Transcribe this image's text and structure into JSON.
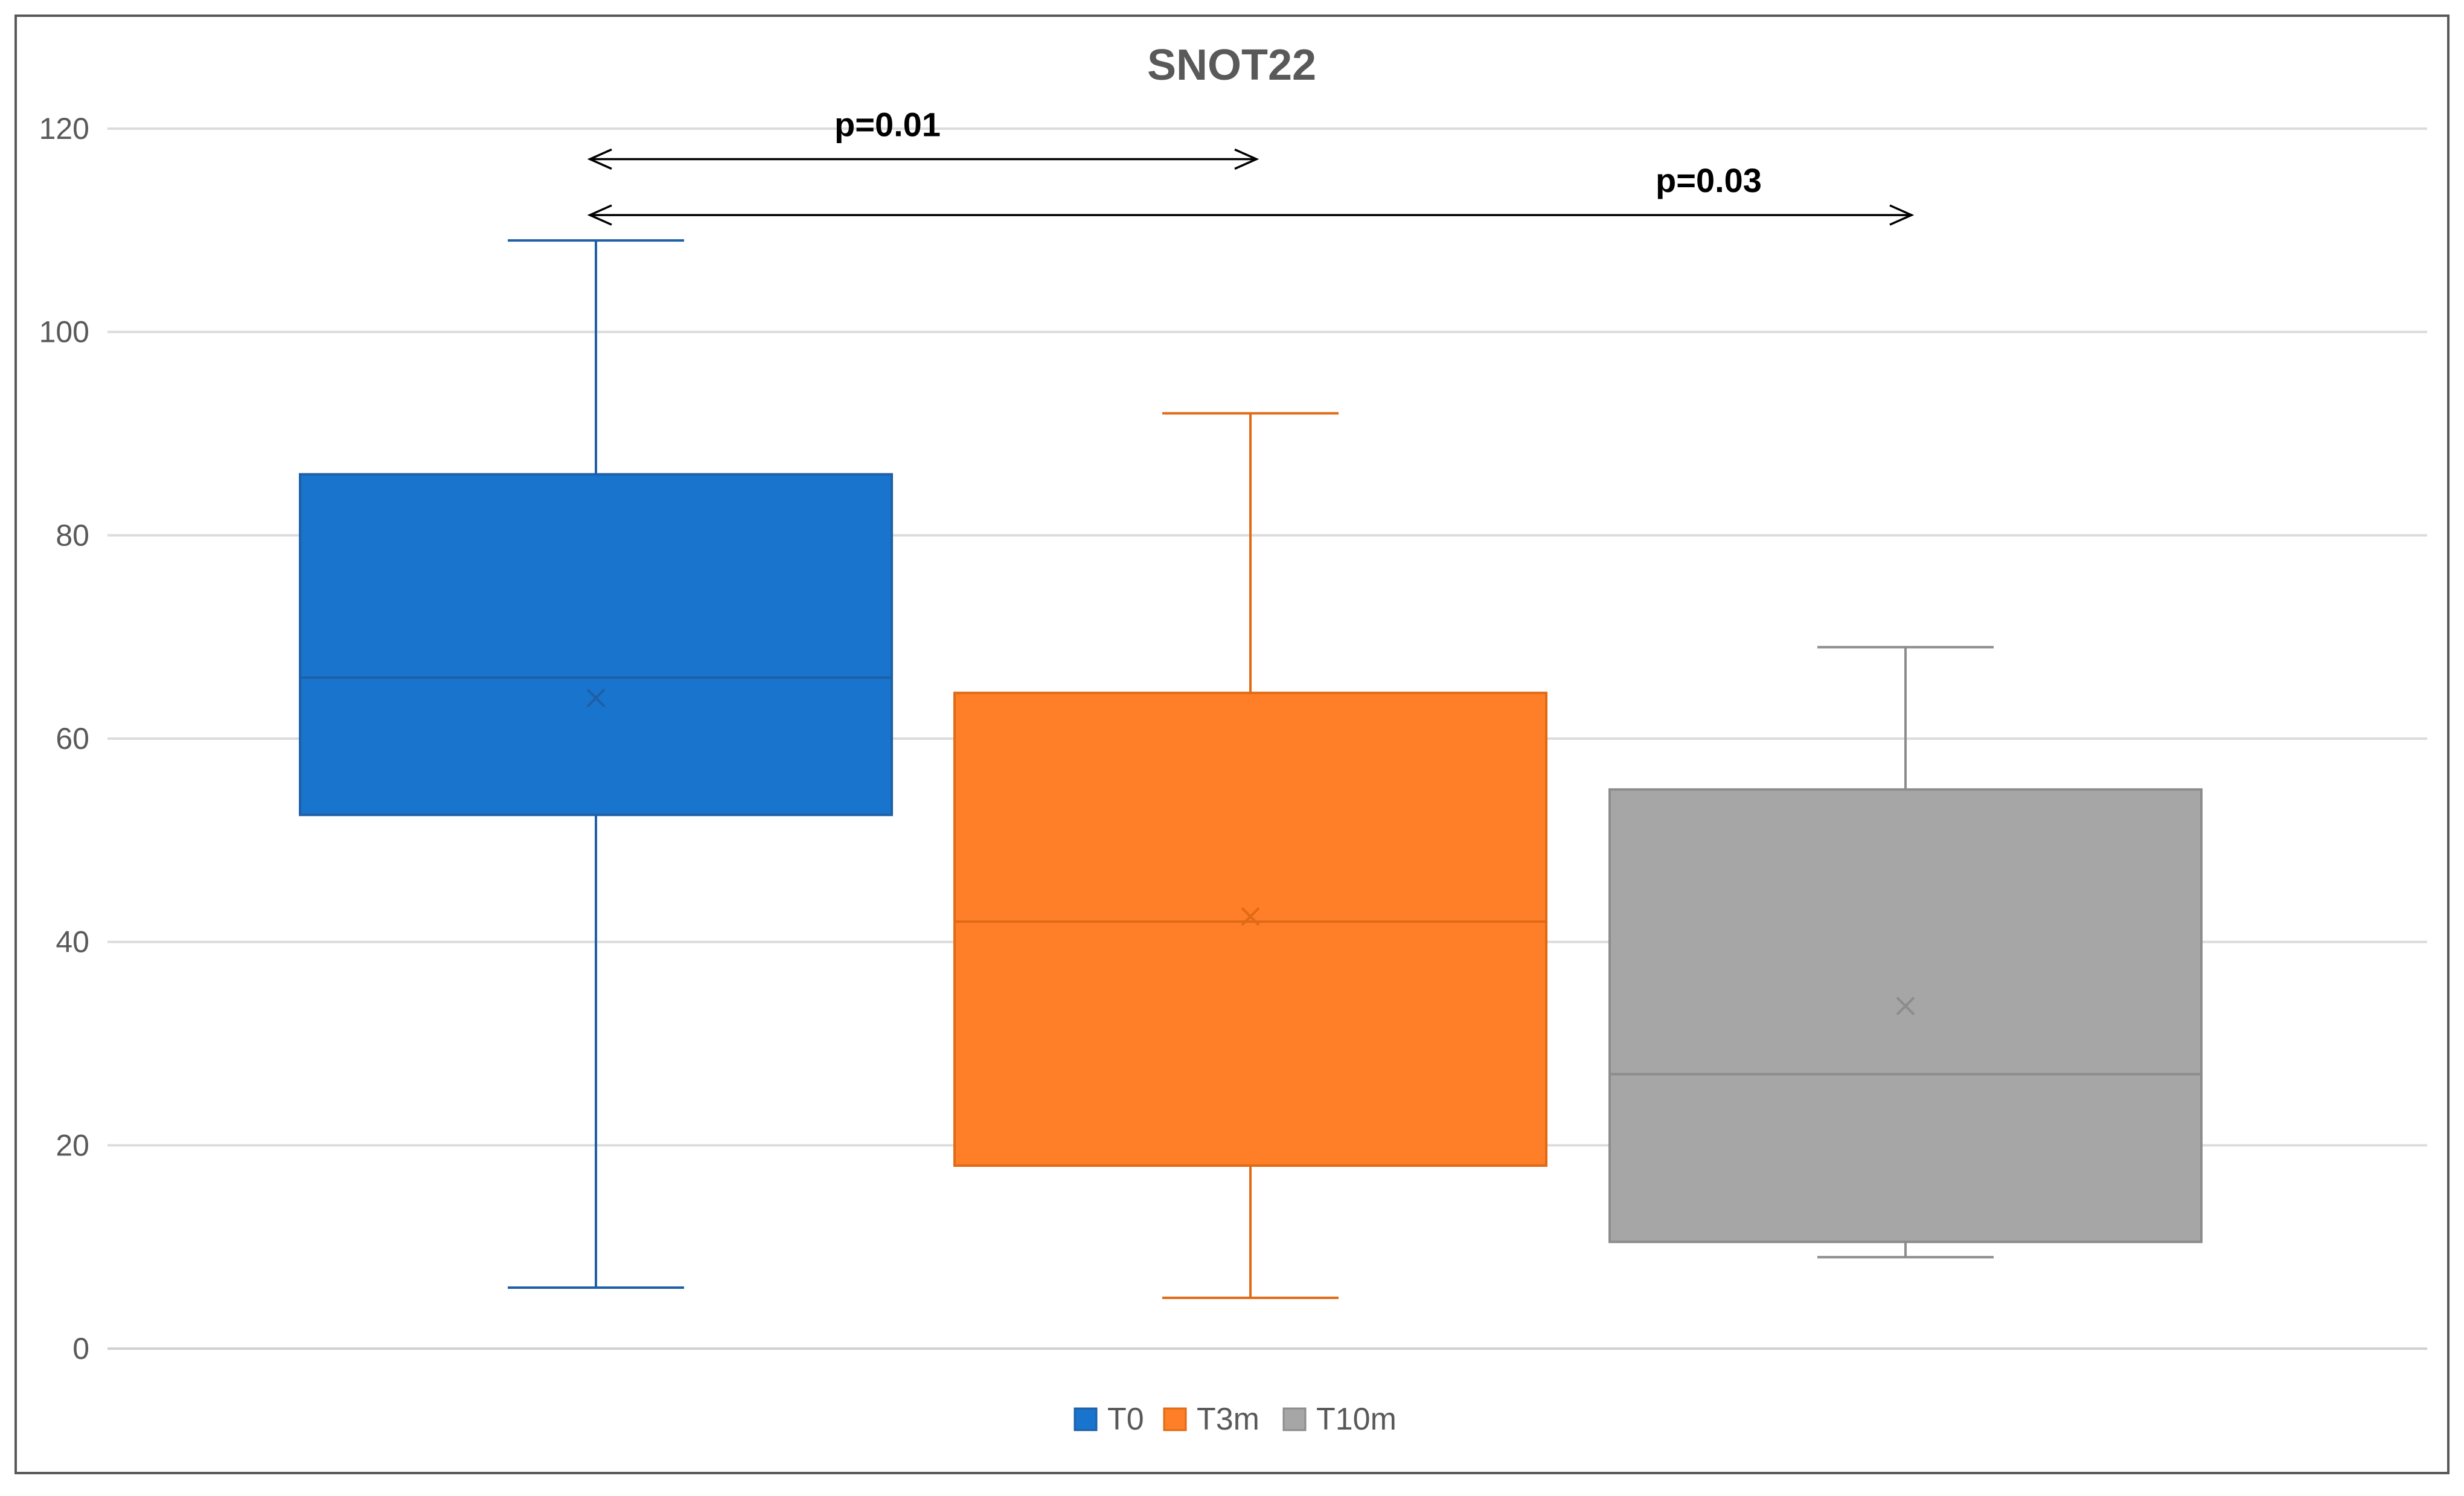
{
  "chart_data": {
    "type": "box",
    "title": "SNOT22",
    "xlabel": "",
    "ylabel": "",
    "ylim": [
      0,
      120
    ],
    "yticks": [
      0,
      20,
      40,
      60,
      80,
      100,
      120
    ],
    "ytick_labels": [
      "0",
      "20",
      "40",
      "60",
      "80",
      "100",
      "120"
    ],
    "grid": true,
    "legend_position": "bottom",
    "series": [
      {
        "name": "T0",
        "color": "#1874CD",
        "stroke": "#1F5FA6",
        "min": 6,
        "q1": 52.5,
        "median": 66,
        "q3": 86,
        "max": 109,
        "mean": 64
      },
      {
        "name": "T3m",
        "color": "#FE7F27",
        "stroke": "#E06A16",
        "min": 5,
        "q1": 18,
        "median": 42,
        "q3": 64.5,
        "max": 92,
        "mean": 42.5
      },
      {
        "name": "T10m",
        "color": "#A6A6A6",
        "stroke": "#8C8C8C",
        "min": 9,
        "q1": 10.5,
        "median": 27,
        "q3": 55,
        "max": 69,
        "mean": 33.7
      }
    ],
    "annotations": [
      {
        "text": "p=0.01",
        "from": "T0",
        "to": "T3m",
        "y": 117
      },
      {
        "text": "p=0.03",
        "from": "T0",
        "to": "T10m",
        "y": 111.5
      }
    ]
  }
}
